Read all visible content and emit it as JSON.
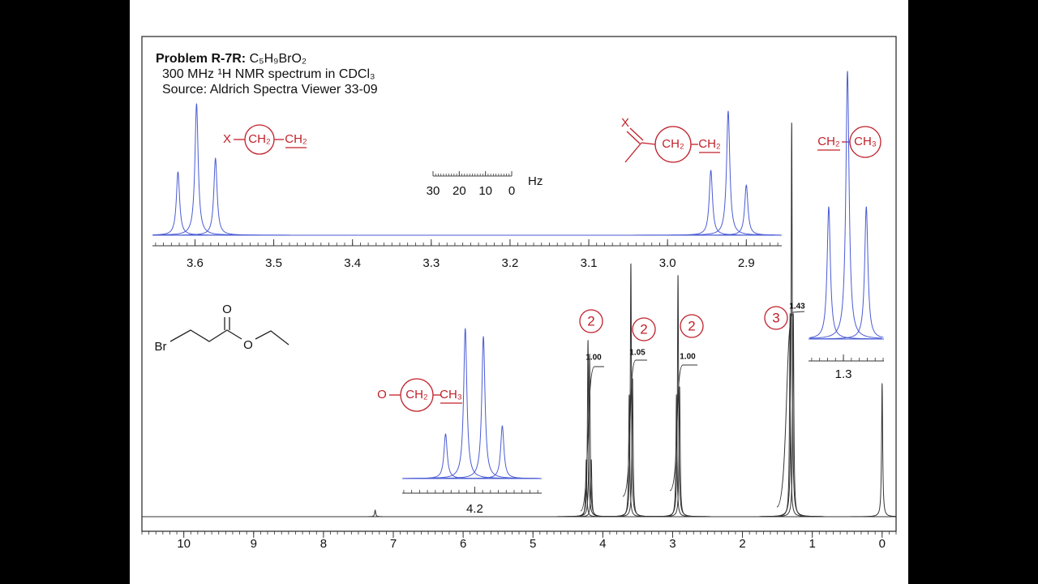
{
  "header": {
    "title": "Problem R-7R:",
    "formula": "C₅H₉BrO₂",
    "line2": "300 MHz ¹H NMR spectrum in CDCl₃",
    "line3": "Source: Aldrich Spectra Viewer 33-09"
  },
  "structure": {
    "br": "Br",
    "o1": "O",
    "o2": "O"
  },
  "fragments": [
    {
      "left": "X",
      "circled": "CH₂",
      "right": "CH₂"
    },
    {
      "left": "X",
      "circled": "CH₂",
      "right": "CH₂"
    },
    {
      "left": "CH₂",
      "circled": "CH₃"
    },
    {
      "left": "O",
      "circled": "CH₂",
      "right": "CH₃"
    }
  ],
  "hz_scale": {
    "ticks": [
      30,
      20,
      10,
      0
    ],
    "unit": "Hz"
  },
  "chart_data": [
    {
      "type": "line",
      "color": "#333333",
      "xlim": [
        10.6,
        -0.2
      ],
      "xticks": [
        10,
        9,
        8,
        7,
        6,
        5,
        4,
        3,
        2,
        1,
        0
      ],
      "minor_step": 0.1,
      "ylim": [
        0,
        592
      ],
      "x": [
        7.26,
        4.237,
        4.212,
        4.189,
        4.165,
        3.622,
        3.598,
        3.574,
        2.945,
        2.923,
        2.9,
        1.318,
        1.295,
        1.272,
        0
      ],
      "values": [
        8,
        70,
        217,
        200,
        70,
        150,
        312,
        170,
        150,
        297,
        160,
        250,
        485,
        250,
        164
      ],
      "integrals": [
        "1.00",
        "1.05",
        "1.00",
        "1.43"
      ],
      "proton_counts": [
        2,
        2,
        2,
        3
      ]
    },
    {
      "type": "line",
      "color": "#4a5bd4",
      "xlim": [
        3.654,
        2.855
      ],
      "xticks": [
        3.6,
        3.5,
        3.4,
        3.3,
        3.2,
        3.1,
        {
          "value": 3,
          "label": "3.0"
        },
        2.9
      ],
      "minor_step": 0.01,
      "ylim": [
        0,
        200
      ],
      "x": [
        3.6216,
        3.598,
        3.574,
        2.945,
        2.923,
        2.9
      ],
      "values": [
        78,
        162,
        95,
        80,
        153,
        62
      ]
    },
    {
      "type": "line",
      "color": "#4a5bd4",
      "xlim": [
        4.292,
        4.115
      ],
      "xticks": [
        4.2
      ],
      "minor_step": 0.01,
      "ylim": [
        0,
        200
      ],
      "x": [
        4.237,
        4.212,
        4.189,
        4.165
      ],
      "values": [
        55,
        185,
        175,
        65
      ]
    },
    {
      "type": "line",
      "color": "#4a5bd4",
      "xlim": [
        1.344,
        1.249
      ],
      "xticks": [
        1.3
      ],
      "minor_step": 0.01,
      "ylim": [
        0,
        340
      ],
      "x": [
        1.3185,
        1.2949,
        1.2712
      ],
      "values": [
        163,
        330,
        163
      ]
    }
  ]
}
